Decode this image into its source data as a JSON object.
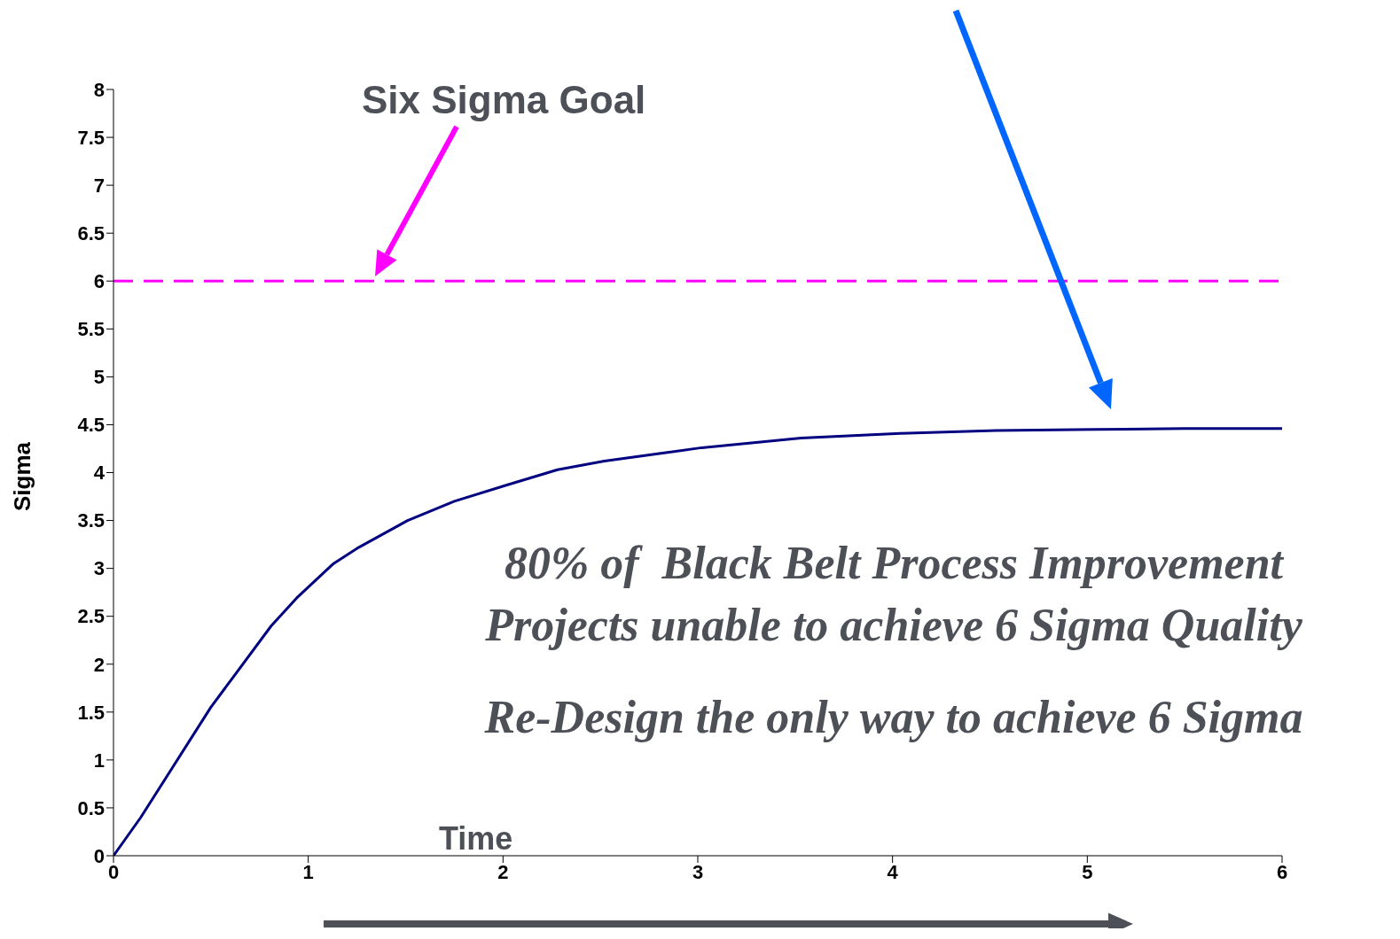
{
  "chart_data": {
    "type": "line",
    "xlabel": "Time",
    "ylabel": "Sigma",
    "x": [
      0,
      0.14,
      0.5,
      0.81,
      0.94,
      1.13,
      1.26,
      1.51,
      1.75,
      2.02,
      2.28,
      2.52,
      3.02,
      3.53,
      4.04,
      4.53,
      5.04,
      5.5,
      6
    ],
    "series": [
      {
        "color": "#000080",
        "values": [
          0,
          0.4,
          1.55,
          2.4,
          2.69,
          3.05,
          3.22,
          3.5,
          3.7,
          3.87,
          4.03,
          4.12,
          4.26,
          4.36,
          4.41,
          4.44,
          4.45,
          4.46,
          4.46
        ]
      }
    ],
    "marker": "none",
    "xlim": [
      0,
      6
    ],
    "xticks": [
      0,
      1,
      2,
      3,
      4,
      5,
      6
    ],
    "ylim": [
      0,
      8
    ],
    "yticks": [
      0,
      0.5,
      1,
      1.5,
      2,
      2.5,
      3,
      3.5,
      4,
      4.5,
      5,
      5.5,
      6,
      6.5,
      7,
      7.5,
      8
    ],
    "grid": false,
    "ref_lines": [
      {
        "axis": "y",
        "value": 6,
        "color": "#ff00ff",
        "line_style": "dashed"
      }
    ],
    "annotations": [
      "Six Sigma Goal",
      "80% of  Black Belt Process Improvement",
      "Projects unable to achieve 6 Sigma Quality",
      "Re-Design the only way to achieve 6 Sigma"
    ]
  }
}
